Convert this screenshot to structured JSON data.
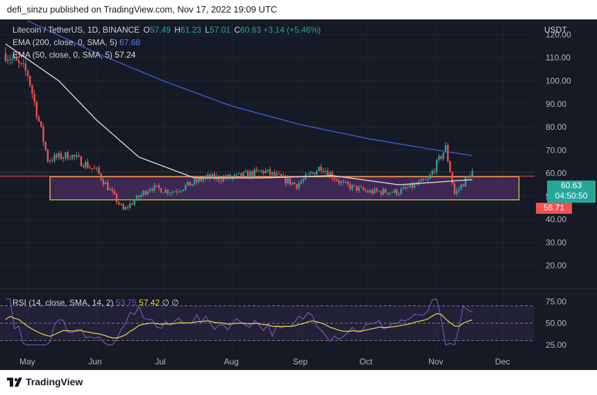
{
  "header": {
    "published": "defi_sinzu published on TradingView.com, Nov 17, 2022 19:09 UTC"
  },
  "legend": {
    "symbol": "Litecoin / TetherUS, 1D, BINANCE",
    "o_label": "O",
    "o": "57.49",
    "h_label": "H",
    "h": "61.23",
    "l_label": "L",
    "l": "57.01",
    "c_label": "C",
    "c": "60.63",
    "change": "+3.14 (+5.46%)",
    "ema200_label": "EMA (200, close, 0, SMA, 5)",
    "ema200": "67.68",
    "ema50_label": "EMA (50, close, 0, SMA, 5)",
    "ema50": "57.24",
    "rsi_label": "RSI (14, close, SMA, 14, 2)",
    "rsi": "53.75",
    "rsi_ma": "57.42",
    "rsi_extra": "∅ ∅"
  },
  "price_axis": {
    "currency": "USDT",
    "last_price": "60.63",
    "countdown": "04:50:50",
    "level": "58.71"
  },
  "footer": {
    "brand": "TradingView"
  },
  "colors": {
    "up": "#26a69a",
    "down": "#ef5350",
    "ema200": "#3f5bd6",
    "ema50": "#d8d8d8",
    "rsi": "#7e57c2",
    "rsi_ma": "#f5d547",
    "zone": "#f5d547",
    "level": "#ef5350"
  },
  "chart_data": [
    {
      "type": "candlestick",
      "title": "Litecoin / TetherUS, 1D, BINANCE",
      "ylabel": "USDT",
      "ylim": [
        13,
        126
      ],
      "yticks": [
        "120.00",
        "110.00",
        "100.00",
        "90.00",
        "80.00",
        "70.00",
        "60.00",
        "50.00",
        "40.00",
        "30.00",
        "20.00"
      ],
      "xticks": [
        "May",
        "Jun",
        "Jul",
        "Aug",
        "Sep",
        "Oct",
        "Nov",
        "Dec"
      ],
      "series_close_approx": [
        {
          "date": "2022-04-21",
          "close": 112
        },
        {
          "date": "2022-05-01",
          "close": 103
        },
        {
          "date": "2022-05-10",
          "close": 66
        },
        {
          "date": "2022-05-20",
          "close": 68
        },
        {
          "date": "2022-06-01",
          "close": 61
        },
        {
          "date": "2022-06-13",
          "close": 44
        },
        {
          "date": "2022-06-25",
          "close": 54
        },
        {
          "date": "2022-07-05",
          "close": 52
        },
        {
          "date": "2022-07-20",
          "close": 58
        },
        {
          "date": "2022-08-01",
          "close": 58
        },
        {
          "date": "2022-08-15",
          "close": 61
        },
        {
          "date": "2022-08-30",
          "close": 55
        },
        {
          "date": "2022-09-10",
          "close": 63
        },
        {
          "date": "2022-09-20",
          "close": 55
        },
        {
          "date": "2022-10-01",
          "close": 52
        },
        {
          "date": "2022-10-15",
          "close": 52
        },
        {
          "date": "2022-10-28",
          "close": 57
        },
        {
          "date": "2022-11-05",
          "close": 71
        },
        {
          "date": "2022-11-09",
          "close": 51
        },
        {
          "date": "2022-11-17",
          "close": 60.63
        }
      ],
      "ema200": [
        {
          "date": "2022-05-01",
          "value": 126
        },
        {
          "date": "2022-06-01",
          "value": 112
        },
        {
          "date": "2022-07-01",
          "value": 100
        },
        {
          "date": "2022-08-01",
          "value": 89
        },
        {
          "date": "2022-09-01",
          "value": 81
        },
        {
          "date": "2022-10-01",
          "value": 75
        },
        {
          "date": "2022-11-01",
          "value": 70
        },
        {
          "date": "2022-11-17",
          "value": 67.68
        }
      ],
      "ema50": [
        {
          "date": "2022-04-21",
          "value": 116
        },
        {
          "date": "2022-05-15",
          "value": 100
        },
        {
          "date": "2022-06-01",
          "value": 83
        },
        {
          "date": "2022-06-20",
          "value": 67
        },
        {
          "date": "2022-07-15",
          "value": 58
        },
        {
          "date": "2022-08-15",
          "value": 58
        },
        {
          "date": "2022-09-15",
          "value": 59
        },
        {
          "date": "2022-10-15",
          "value": 55
        },
        {
          "date": "2022-11-17",
          "value": 57.24
        }
      ],
      "support_zone": [
        48.5,
        58.5
      ],
      "horizontal_level": 58.71,
      "last_price": 60.63
    },
    {
      "type": "line",
      "title": "RSI (14, close, SMA, 14, 2)",
      "yticks": [
        "75.00",
        "50.00",
        "25.00"
      ],
      "bands": [
        30,
        50,
        70
      ],
      "rsi_last": 53.75,
      "rsi_ma_last": 57.42
    }
  ]
}
